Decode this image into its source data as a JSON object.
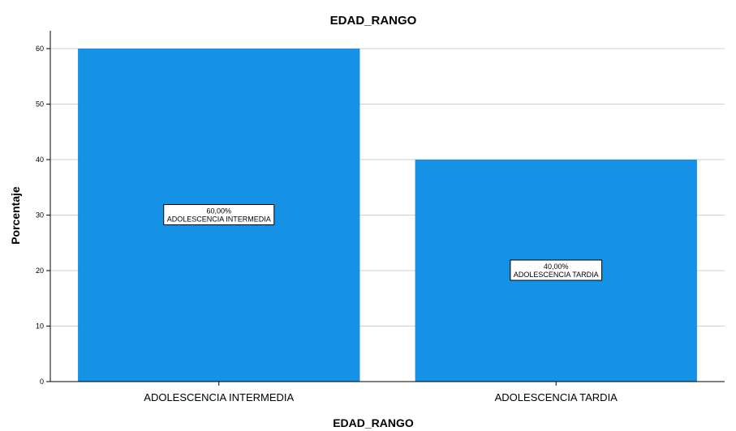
{
  "chart_data": {
    "type": "bar",
    "title": "EDAD_RANGO",
    "xlabel": "EDAD_RANGO",
    "ylabel": "Porcentaje",
    "categories": [
      "ADOLESCENCIA INTERMEDIA",
      "ADOLESCENCIA TARDIA"
    ],
    "values": [
      60,
      40
    ],
    "data_labels": [
      {
        "value": "60,00%",
        "category": "ADOLESCENCIA INTERMEDIA"
      },
      {
        "value": "40,00%",
        "category": "ADOLESCENCIA TARDIA"
      }
    ],
    "ylim": [
      0,
      60
    ],
    "yticks": [
      "0",
      "10",
      "20",
      "30",
      "40",
      "50",
      "60"
    ],
    "grid": true,
    "bar_color": "#1592e6",
    "grid_color": "#cfcfcf"
  }
}
